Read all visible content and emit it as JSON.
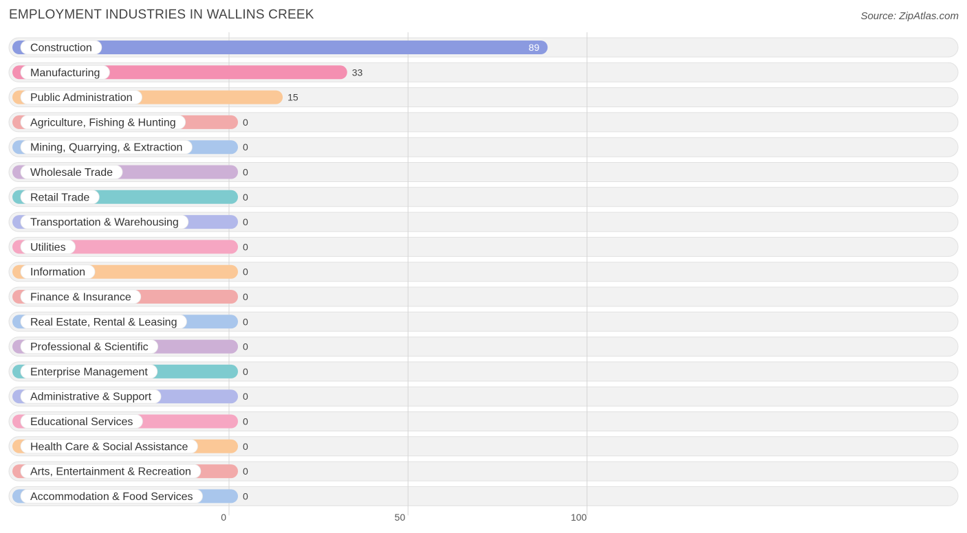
{
  "page": {
    "title": "EMPLOYMENT INDUSTRIES IN WALLINS CREEK",
    "source": "Source: ZipAtlas.com"
  },
  "chart_data": {
    "type": "bar",
    "orientation": "horizontal",
    "title": "EMPLOYMENT INDUSTRIES IN WALLINS CREEK",
    "xlabel": "",
    "ylabel": "",
    "xlim": [
      0,
      100
    ],
    "x_ticks": [
      "0",
      "50",
      "100"
    ],
    "grid": true,
    "categories": [
      "Construction",
      "Manufacturing",
      "Public Administration",
      "Agriculture, Fishing & Hunting",
      "Mining, Quarrying, & Extraction",
      "Wholesale Trade",
      "Retail Trade",
      "Transportation & Warehousing",
      "Utilities",
      "Information",
      "Finance & Insurance",
      "Real Estate, Rental & Leasing",
      "Professional & Scientific",
      "Enterprise Management",
      "Administrative & Support",
      "Educational Services",
      "Health Care & Social Assistance",
      "Arts, Entertainment & Recreation",
      "Accommodation & Food Services"
    ],
    "values": [
      89,
      33,
      15,
      0,
      0,
      0,
      0,
      0,
      0,
      0,
      0,
      0,
      0,
      0,
      0,
      0,
      0,
      0,
      0
    ],
    "colors": [
      "#8b9ae0",
      "#f48fb1",
      "#fbc897",
      "#f2aaaa",
      "#a9c6ec",
      "#cdb0d6",
      "#7ecbcf",
      "#b2b8ea",
      "#f6a6c2",
      "#fbc897",
      "#f2aaaa",
      "#a9c6ec",
      "#cdb0d6",
      "#7ecbcf",
      "#b2b8ea",
      "#f6a6c2",
      "#fbc897",
      "#f2aaaa",
      "#a9c6ec"
    ]
  }
}
